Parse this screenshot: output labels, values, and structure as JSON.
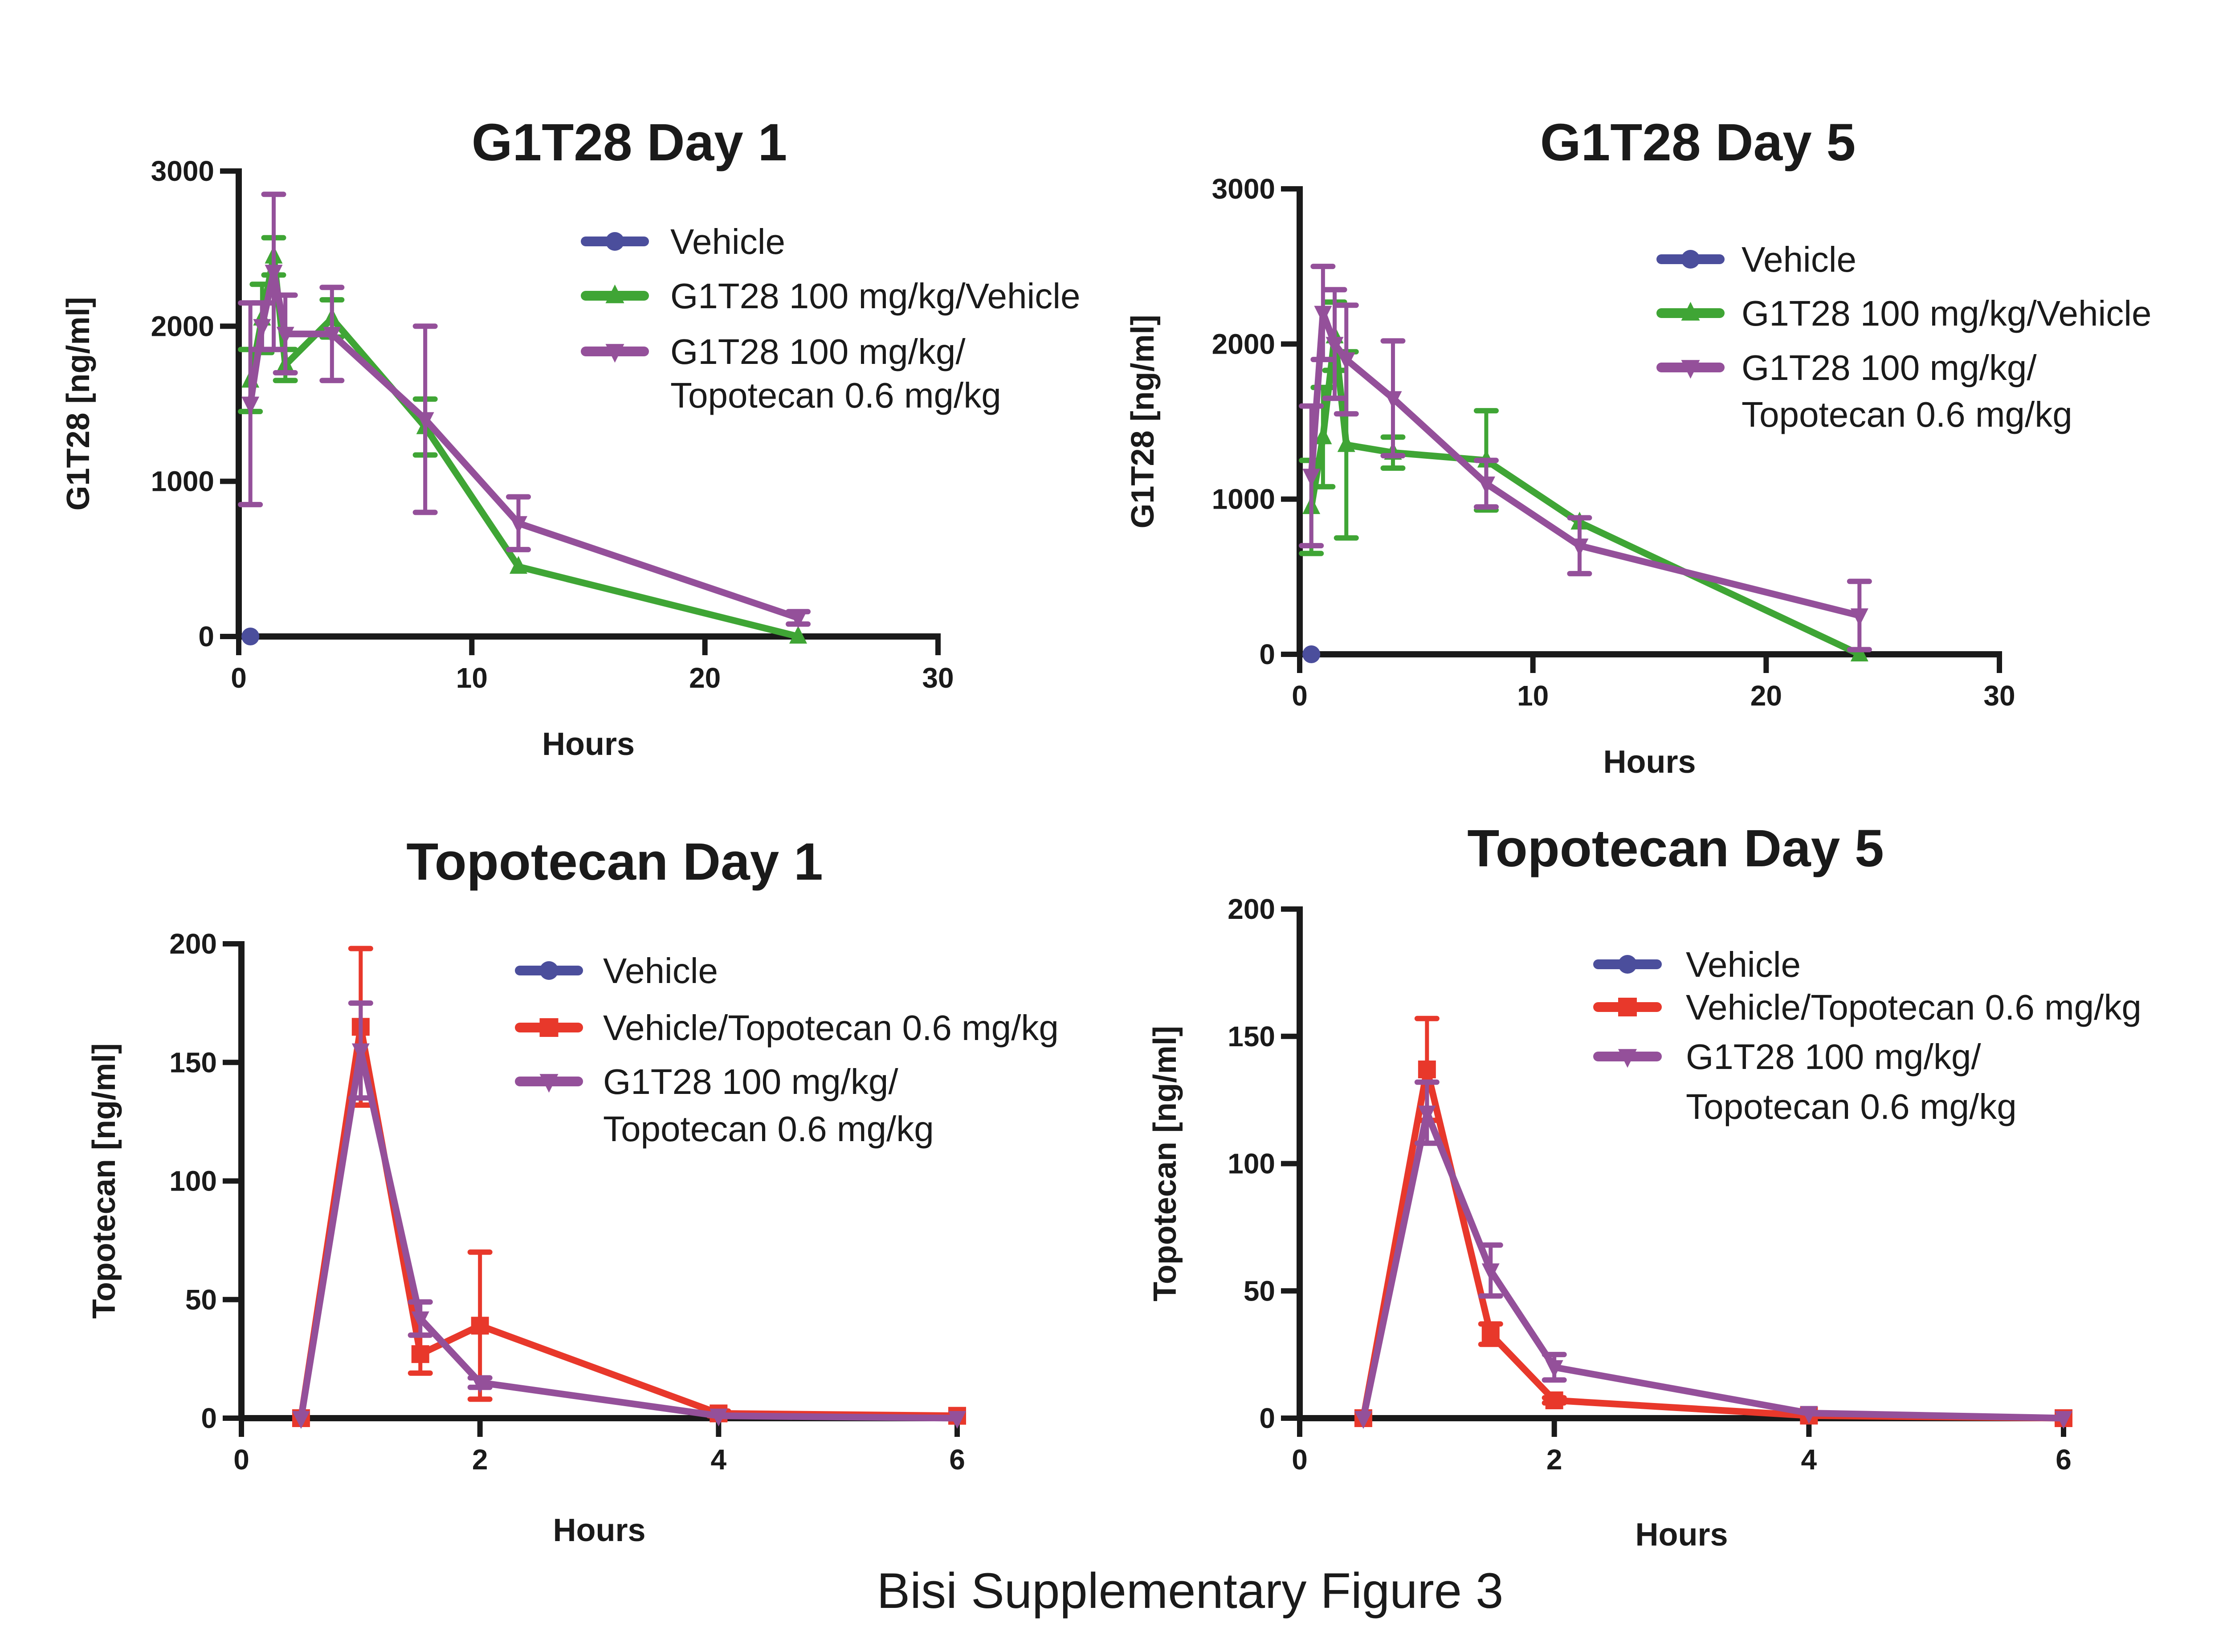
{
  "caption": "Bisi Supplementary Figure 3",
  "colors": {
    "vehicle": "#4b4e9c",
    "g1t28": "#3fa535",
    "combo": "#94509a",
    "topotecan": "#e8382b",
    "axis": "#1a1a1a"
  },
  "chart_data": [
    {
      "type": "line",
      "title": "G1T28 Day 1",
      "xlabel": "Hours",
      "ylabel": "G1T28 [ng/ml]",
      "xlim": [
        0,
        30
      ],
      "ylim": [
        0,
        3000
      ],
      "xticks": [
        "0",
        "10",
        "20",
        "30"
      ],
      "yticks": [
        "0",
        "1000",
        "2000",
        "3000"
      ],
      "legend_position": "top-right",
      "series": [
        {
          "name": "Vehicle",
          "marker": "circle",
          "color": "#4b4e9c",
          "x": [
            0.5
          ],
          "y": [
            0
          ],
          "err": [
            0
          ]
        },
        {
          "name": "G1T28 100 mg/kg/Vehicle",
          "marker": "triangle-up",
          "color": "#3fa535",
          "x": [
            0.5,
            1,
            1.5,
            2,
            4,
            8,
            12,
            24
          ],
          "y": [
            1650,
            2050,
            2450,
            1750,
            2050,
            1350,
            450,
            0
          ],
          "err": [
            200,
            220,
            120,
            100,
            120,
            180,
            0,
            0
          ]
        },
        {
          "name": "G1T28 100 mg/kg/",
          "name_line2": "Topotecan 0.6 mg/kg",
          "marker": "triangle-down",
          "color": "#94509a",
          "x": [
            0.5,
            1,
            1.5,
            2,
            4,
            8,
            12,
            24
          ],
          "y": [
            1500,
            2000,
            2350,
            1950,
            1950,
            1400,
            730,
            120
          ],
          "err": [
            650,
            150,
            500,
            250,
            300,
            600,
            170,
            40
          ]
        }
      ]
    },
    {
      "type": "line",
      "title": "G1T28 Day 5",
      "xlabel": "Hours",
      "ylabel": "G1T28 [ng/ml]",
      "xlim": [
        0,
        30
      ],
      "ylim": [
        0,
        3000
      ],
      "xticks": [
        "0",
        "10",
        "20",
        "30"
      ],
      "yticks": [
        "0",
        "1000",
        "2000",
        "3000"
      ],
      "legend_position": "top-right",
      "series": [
        {
          "name": "Vehicle",
          "marker": "circle",
          "color": "#4b4e9c",
          "x": [
            0.5
          ],
          "y": [
            0
          ],
          "err": [
            0
          ]
        },
        {
          "name": "G1T28 100 mg/kg/Vehicle",
          "marker": "triangle-up",
          "color": "#3fa535",
          "x": [
            0.5,
            1,
            1.5,
            2,
            4,
            8,
            12,
            24
          ],
          "y": [
            950,
            1400,
            2050,
            1350,
            1300,
            1250,
            850,
            0
          ],
          "err": [
            300,
            320,
            220,
            600,
            100,
            320,
            0,
            0
          ]
        },
        {
          "name": "G1T28 100 mg/kg/",
          "name_line2": "Topotecan 0.6 mg/kg",
          "marker": "triangle-down",
          "color": "#94509a",
          "x": [
            0.5,
            1,
            1.5,
            2,
            4,
            8,
            12,
            24
          ],
          "y": [
            1150,
            2200,
            2000,
            1900,
            1650,
            1100,
            700,
            250
          ],
          "err": [
            450,
            300,
            350,
            350,
            370,
            150,
            180,
            220
          ]
        }
      ]
    },
    {
      "type": "line",
      "title": "Topotecan Day 1",
      "xlabel": "Hours",
      "ylabel": "Topotecan [ng/ml]",
      "xlim": [
        0,
        6
      ],
      "ylim": [
        0,
        200
      ],
      "xticks": [
        "0",
        "2",
        "4",
        "6"
      ],
      "yticks": [
        "0",
        "50",
        "100",
        "150",
        "200"
      ],
      "legend_position": "top-right",
      "series": [
        {
          "name": "Vehicle",
          "marker": "circle",
          "color": "#4b4e9c",
          "x": [
            0.5
          ],
          "y": [
            0
          ],
          "err": [
            0
          ]
        },
        {
          "name": "Vehicle/Topotecan 0.6 mg/kg",
          "marker": "square",
          "color": "#e8382b",
          "x": [
            0.5,
            1,
            1.5,
            2,
            4,
            6
          ],
          "y": [
            0,
            165,
            27,
            39,
            2,
            1
          ],
          "err": [
            0,
            33,
            8,
            31,
            1,
            0
          ]
        },
        {
          "name": "G1T28 100 mg/kg/",
          "name_line2": "Topotecan 0.6 mg/kg",
          "marker": "triangle-down",
          "color": "#94509a",
          "x": [
            0.5,
            1,
            1.5,
            2,
            4,
            6
          ],
          "y": [
            0,
            155,
            42,
            15,
            1,
            0
          ],
          "err": [
            0,
            20,
            7,
            2,
            0,
            0
          ]
        }
      ]
    },
    {
      "type": "line",
      "title": "Topotecan Day 5",
      "xlabel": "Hours",
      "ylabel": "Topotecan [ng/ml]",
      "xlim": [
        0,
        6
      ],
      "ylim": [
        0,
        200
      ],
      "xticks": [
        "0",
        "2",
        "4",
        "6"
      ],
      "yticks": [
        "0",
        "50",
        "100",
        "150",
        "200"
      ],
      "legend_position": "top-right",
      "series": [
        {
          "name": "Vehicle",
          "marker": "circle",
          "color": "#4b4e9c",
          "x": [
            0.5
          ],
          "y": [
            0
          ],
          "err": [
            0
          ]
        },
        {
          "name": "Vehicle/Topotecan 0.6 mg/kg",
          "marker": "square",
          "color": "#e8382b",
          "x": [
            0.5,
            1,
            1.5,
            2,
            4,
            6
          ],
          "y": [
            0,
            137,
            33,
            7,
            1,
            0
          ],
          "err": [
            0,
            20,
            4,
            1,
            0,
            0
          ]
        },
        {
          "name": "G1T28 100 mg/kg/",
          "name_line2": "Topotecan 0.6 mg/kg",
          "marker": "triangle-down",
          "color": "#94509a",
          "x": [
            0.5,
            1,
            1.5,
            2,
            4,
            6
          ],
          "y": [
            0,
            120,
            58,
            20,
            2,
            0
          ],
          "err": [
            0,
            12,
            10,
            5,
            0,
            0
          ]
        }
      ]
    }
  ]
}
